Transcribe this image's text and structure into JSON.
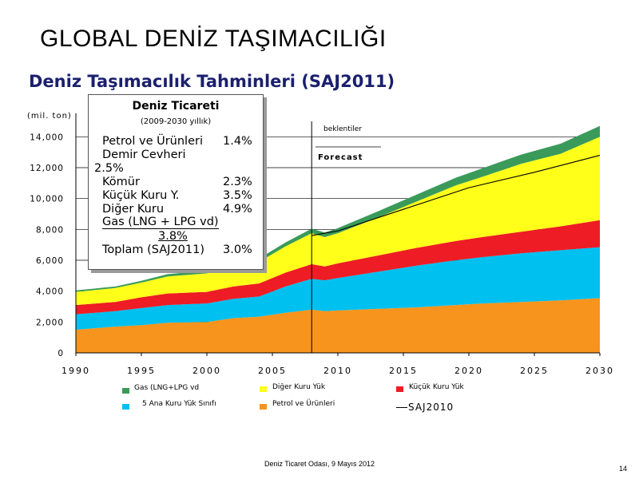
{
  "slide_title": "GLOBAL DENİZ TAŞIMACILIĞI",
  "subtitle": "Deniz Taşımacılık Tahminleri (SAJ2011)",
  "footer": "Deniz Ticaret Odası, 9 Mayıs 2012",
  "page_number": "14",
  "info_box": {
    "title": "Deniz Ticareti",
    "subtitle": "(2009-2030 yıllık)",
    "rows": [
      {
        "label": "Petrol ve Ürünleri",
        "value": "1.4%"
      },
      {
        "label": "Demir Cevheri",
        "value": ""
      },
      {
        "label": "2.5%",
        "value": ""
      },
      {
        "label": "Kömür",
        "value": "2.3%"
      },
      {
        "label": "Küçük Kuru Y.",
        "value": "3.5%"
      },
      {
        "label": "Diğer Kuru",
        "value": "4.9%"
      },
      {
        "label": "Gas (LNG + LPG vd)",
        "value": ""
      },
      {
        "label": "3.8%",
        "value": ""
      },
      {
        "label": "Toplam (SAJ2011)",
        "value": "3.0%"
      }
    ]
  },
  "colors": {
    "petrol": "#f7941d",
    "bes_ana": "#00c0f0",
    "kucuk_kuru": "#ee1c24",
    "diger_kuru": "#ffff1a",
    "gas": "#3a9a5a"
  },
  "chart_data": {
    "type": "area",
    "ylabel": "(mil. ton)",
    "xlim": [
      1990,
      2030
    ],
    "ylim": [
      0,
      15000
    ],
    "x_ticks": [
      "1990",
      "1995",
      "2000",
      "2005",
      "2010",
      "2015",
      "2020",
      "2025",
      "2030"
    ],
    "y_ticks": [
      "0",
      "2,000",
      "4,000",
      "6,000",
      "8,000",
      "10,000",
      "12,000",
      "14,000"
    ],
    "annotations": [
      "beklentiler",
      "Forecast"
    ],
    "forecast_start": 2008,
    "x": [
      1990,
      1993,
      1995,
      1997,
      2000,
      2002,
      2004,
      2006,
      2008,
      2009,
      2010,
      2013,
      2016,
      2019,
      2021,
      2024,
      2027,
      2030
    ],
    "series": [
      {
        "name": "Petrol ve Ürünleri",
        "values": [
          1500,
          1700,
          1800,
          1950,
          2000,
          2250,
          2350,
          2600,
          2800,
          2700,
          2750,
          2850,
          2950,
          3100,
          3200,
          3300,
          3400,
          3550
        ]
      },
      {
        "name": "5 Ana Kuru Yük Sınıfı",
        "values": [
          1000,
          1000,
          1100,
          1150,
          1200,
          1250,
          1300,
          1700,
          2000,
          2000,
          2100,
          2400,
          2700,
          2900,
          3000,
          3150,
          3250,
          3300
        ]
      },
      {
        "name": "Küçük Kuru Yük",
        "values": [
          600,
          600,
          700,
          750,
          750,
          800,
          850,
          900,
          950,
          900,
          950,
          1050,
          1150,
          1250,
          1300,
          1400,
          1550,
          1750
        ]
      },
      {
        "name": "Diğer Kuru Yük",
        "values": [
          850,
          900,
          950,
          1100,
          1200,
          1250,
          1400,
          1700,
          2000,
          1900,
          1950,
          2450,
          3000,
          3600,
          3900,
          4400,
          4700,
          5400
        ]
      },
      {
        "name": "Gas (LNG+LPG vd)",
        "values": [
          100,
          100,
          120,
          150,
          170,
          200,
          220,
          250,
          300,
          300,
          330,
          400,
          450,
          500,
          550,
          600,
          650,
          700
        ]
      }
    ],
    "line_series": {
      "name": "SAJ2010",
      "x": [
        2008,
        2010,
        2015,
        2020,
        2025,
        2030
      ],
      "values": [
        7600,
        7900,
        9300,
        10700,
        11700,
        12800
      ]
    },
    "legend": [
      {
        "label": "Gas (LNG+LPG vd",
        "color": "#3a9a5a"
      },
      {
        "label": "Diğer Kuru Yük",
        "color": "#ffff1a"
      },
      {
        "label": "Küçük Kuru Yük",
        "color": "#ee1c24"
      },
      {
        "label": "5 Ana Kuru Yük Sınıfı",
        "color": "#00c0f0"
      },
      {
        "label": "Petrol ve Ürünleri",
        "color": "#f7941d"
      },
      {
        "label": "SAJ2010",
        "color": "#000000"
      }
    ]
  }
}
